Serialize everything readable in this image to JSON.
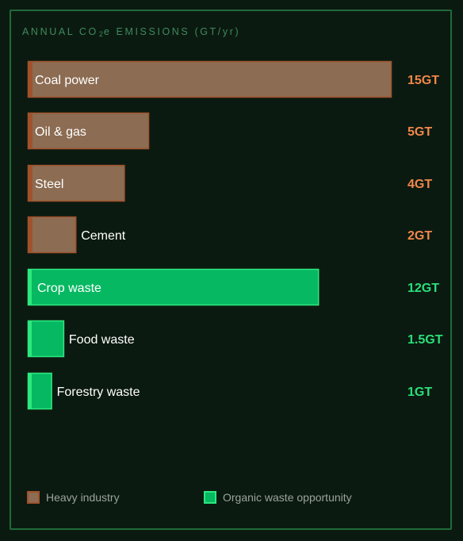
{
  "chart_data": {
    "type": "bar",
    "orientation": "horizontal",
    "title_prefix": "ANNUAL CO",
    "title_sub": "2",
    "title_suffix": "e EMISSIONS (GT/yr)",
    "unit": "GT",
    "categories": [
      "Coal power",
      "Oil & gas",
      "Steel",
      "Cement",
      "Crop waste",
      "Food waste",
      "Forestry waste"
    ],
    "values": [
      15,
      5,
      4,
      2,
      12,
      1.5,
      1
    ],
    "value_labels": [
      "15GT",
      "5GT",
      "4GT",
      "2GT",
      "12GT",
      "1.5GT",
      "1GT"
    ],
    "groups": [
      "industry",
      "industry",
      "industry",
      "industry",
      "organic",
      "organic",
      "organic"
    ],
    "legend": [
      {
        "key": "industry",
        "label": "Heavy industry"
      },
      {
        "key": "organic",
        "label": "Organic waste opportunity"
      }
    ],
    "colors": {
      "industry_fill": "#8c6c52",
      "industry_border": "#a0522d",
      "industry_value": "#f0874a",
      "organic_fill": "#06b862",
      "organic_border": "#2de87e",
      "organic_value": "#29e07a"
    },
    "grid": false,
    "legend_position": "bottom-left"
  }
}
